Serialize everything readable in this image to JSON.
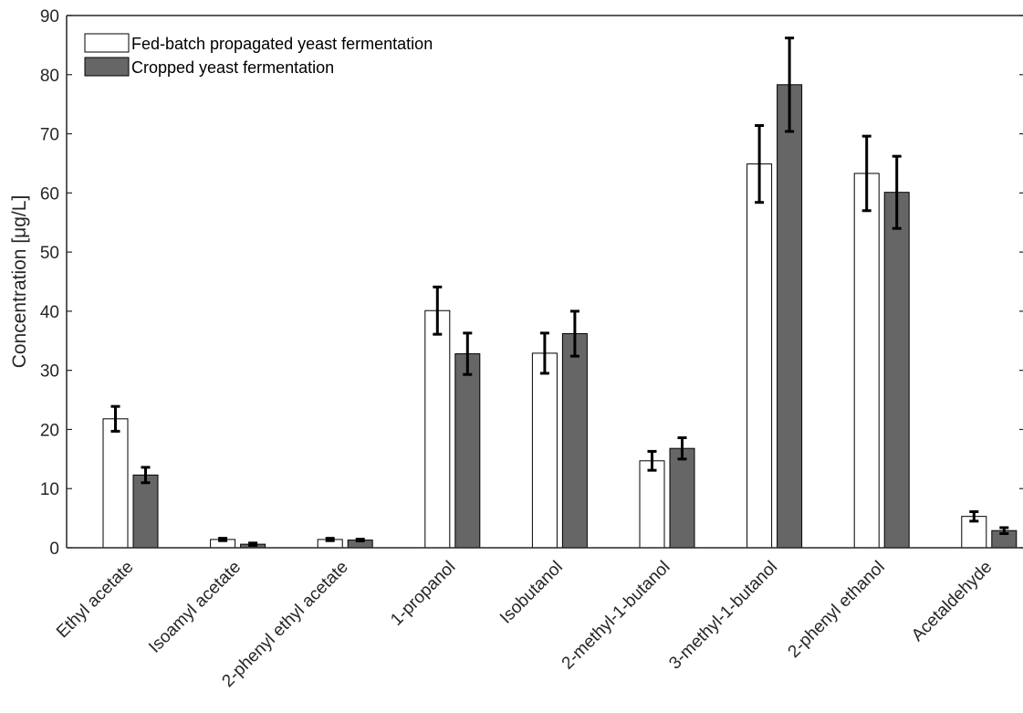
{
  "chart_data": {
    "type": "bar",
    "title": "",
    "xlabel": "",
    "ylabel": "Concentration [μg/L]",
    "ylim": [
      0,
      90
    ],
    "yticks": [
      0,
      10,
      20,
      30,
      40,
      50,
      60,
      70,
      80,
      90
    ],
    "grid": false,
    "legend_position": "top-left",
    "categories": [
      "Ethyl acetate",
      "Isoamyl acetate",
      "2-phenyl ethyl acetate",
      "1-propanol",
      "Isobutanol",
      "2-methyl-1-butanol",
      "3-methyl-1-butanol",
      "2-phenyl ethanol",
      "Acetaldehyde"
    ],
    "series": [
      {
        "name": "Fed-batch propagated yeast fermentation",
        "color": "#ffffff",
        "values": [
          21.8,
          1.4,
          1.4,
          40.1,
          32.9,
          14.7,
          64.9,
          63.3,
          5.3
        ],
        "error": [
          2.1,
          0.2,
          0.2,
          4.0,
          3.4,
          1.6,
          6.5,
          6.3,
          0.8
        ]
      },
      {
        "name": "Cropped yeast fermentation",
        "color": "#666666",
        "values": [
          12.3,
          0.6,
          1.3,
          32.8,
          36.2,
          16.8,
          78.3,
          60.1,
          2.9
        ],
        "error": [
          1.3,
          0.2,
          0.15,
          3.5,
          3.8,
          1.8,
          7.9,
          6.1,
          0.5
        ]
      }
    ]
  }
}
